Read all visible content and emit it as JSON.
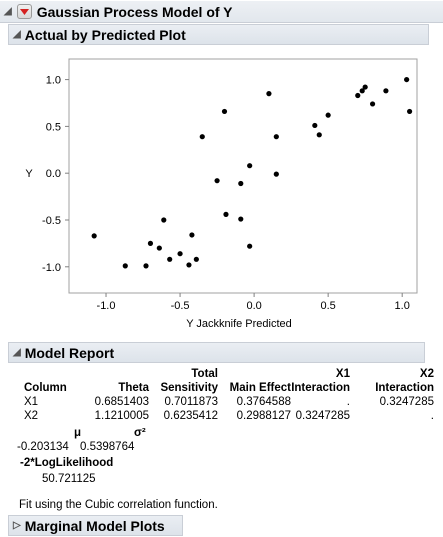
{
  "window": {
    "title": "Gaussian Process Model of Y",
    "menu_icon": "red-triangle-menu-icon"
  },
  "sections": {
    "actual_by_predicted": {
      "title": "Actual by Predicted Plot"
    },
    "model_report": {
      "title": "Model Report"
    },
    "marginal_model_plots": {
      "title": "Marginal Model Plots"
    }
  },
  "chart_data": {
    "type": "scatter",
    "title": "",
    "xlabel": "Y Jackknife Predicted",
    "ylabel": "Y",
    "xlim": [
      -1.25,
      1.1
    ],
    "ylim": [
      -1.28,
      1.22
    ],
    "x_ticks": [
      -1.0,
      -0.5,
      0.0,
      0.5,
      1.0
    ],
    "x_tick_labels": [
      "-1.0",
      "-0.5",
      "0.0",
      "0.5",
      "1.0"
    ],
    "y_ticks": [
      -1.0,
      -0.5,
      0.0,
      0.5,
      1.0
    ],
    "y_tick_labels": [
      "-1.0",
      "-0.5",
      "0.0",
      "0.5",
      "1.0"
    ],
    "grid": false,
    "points": [
      {
        "x": -1.08,
        "y": -0.67
      },
      {
        "x": -0.87,
        "y": -0.99
      },
      {
        "x": -0.73,
        "y": -0.99
      },
      {
        "x": -0.7,
        "y": -0.75
      },
      {
        "x": -0.64,
        "y": -0.8
      },
      {
        "x": -0.61,
        "y": -0.5
      },
      {
        "x": -0.57,
        "y": -0.92
      },
      {
        "x": -0.5,
        "y": -0.86
      },
      {
        "x": -0.44,
        "y": -0.98
      },
      {
        "x": -0.42,
        "y": -0.66
      },
      {
        "x": -0.39,
        "y": -0.92
      },
      {
        "x": -0.35,
        "y": 0.39
      },
      {
        "x": -0.25,
        "y": -0.08
      },
      {
        "x": -0.2,
        "y": 0.66
      },
      {
        "x": -0.19,
        "y": -0.44
      },
      {
        "x": -0.09,
        "y": -0.11
      },
      {
        "x": -0.09,
        "y": -0.49
      },
      {
        "x": -0.03,
        "y": 0.08
      },
      {
        "x": -0.03,
        "y": -0.78
      },
      {
        "x": 0.1,
        "y": 0.85
      },
      {
        "x": 0.15,
        "y": 0.39
      },
      {
        "x": 0.15,
        "y": -0.01
      },
      {
        "x": 0.41,
        "y": 0.51
      },
      {
        "x": 0.44,
        "y": 0.41
      },
      {
        "x": 0.5,
        "y": 0.62
      },
      {
        "x": 0.7,
        "y": 0.83
      },
      {
        "x": 0.73,
        "y": 0.88
      },
      {
        "x": 0.75,
        "y": 0.92
      },
      {
        "x": 0.8,
        "y": 0.74
      },
      {
        "x": 0.89,
        "y": 0.88
      },
      {
        "x": 1.03,
        "y": 1.0
      },
      {
        "x": 1.05,
        "y": 0.66
      }
    ]
  },
  "model_report": {
    "headers": {
      "total_top": "Total",
      "total_bottom": "Sensitivity",
      "column": "Column",
      "theta": "Theta",
      "main_effect": "Main Effect",
      "x1_top": "X1",
      "x1_bottom": "Interaction",
      "x2_top": "X2",
      "x2_bottom": "Interaction"
    },
    "rows": [
      {
        "column": "X1",
        "theta": "0.6851403",
        "total": "0.7011873",
        "main": "0.3764588",
        "x1": ".",
        "x2": "0.3247285"
      },
      {
        "column": "X2",
        "theta": "1.1210005",
        "total": "0.6235412",
        "main": "0.2988127",
        "x1": "0.3247285",
        "x2": "."
      }
    ],
    "mu_label": "μ",
    "sigma2_label": "σ²",
    "mu_value": "-0.203134",
    "sigma2_value": "0.5398764",
    "loglik_label": "-2*LogLikelihood",
    "loglik_value": "50.721125",
    "note": "Fit using the Cubic correlation function."
  }
}
